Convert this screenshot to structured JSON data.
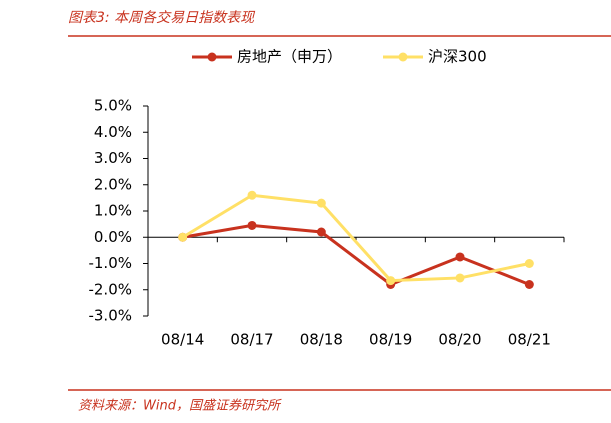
{
  "chart_data": {
    "type": "line",
    "title": "图表3: 本周各交易日指数表现",
    "source": "资料来源：Wind，国盛证券研究所",
    "categories": [
      "08/14",
      "08/17",
      "08/18",
      "08/19",
      "08/20",
      "08/21"
    ],
    "series": [
      {
        "name": "房地产（申万）",
        "color": "#c8321e",
        "values": [
          0,
          0.45,
          0.2,
          -1.8,
          -0.75,
          -1.8
        ]
      },
      {
        "name": "沪深300",
        "color": "#ffe066",
        "values": [
          0,
          1.6,
          1.3,
          -1.65,
          -1.55,
          -1.0
        ]
      }
    ],
    "ylim": [
      -3,
      5
    ],
    "yticks": [
      {
        "value": -3,
        "label": "-3.0%"
      },
      {
        "value": -2,
        "label": "-2.0%"
      },
      {
        "value": -1,
        "label": "-1.0%"
      },
      {
        "value": 0,
        "label": "0.0%"
      },
      {
        "value": 1,
        "label": "1.0%"
      },
      {
        "value": 2,
        "label": "2.0%"
      },
      {
        "value": 3,
        "label": "3.0%"
      },
      {
        "value": 4,
        "label": "4.0%"
      },
      {
        "value": 5,
        "label": "5.0%"
      }
    ],
    "grid": false
  }
}
